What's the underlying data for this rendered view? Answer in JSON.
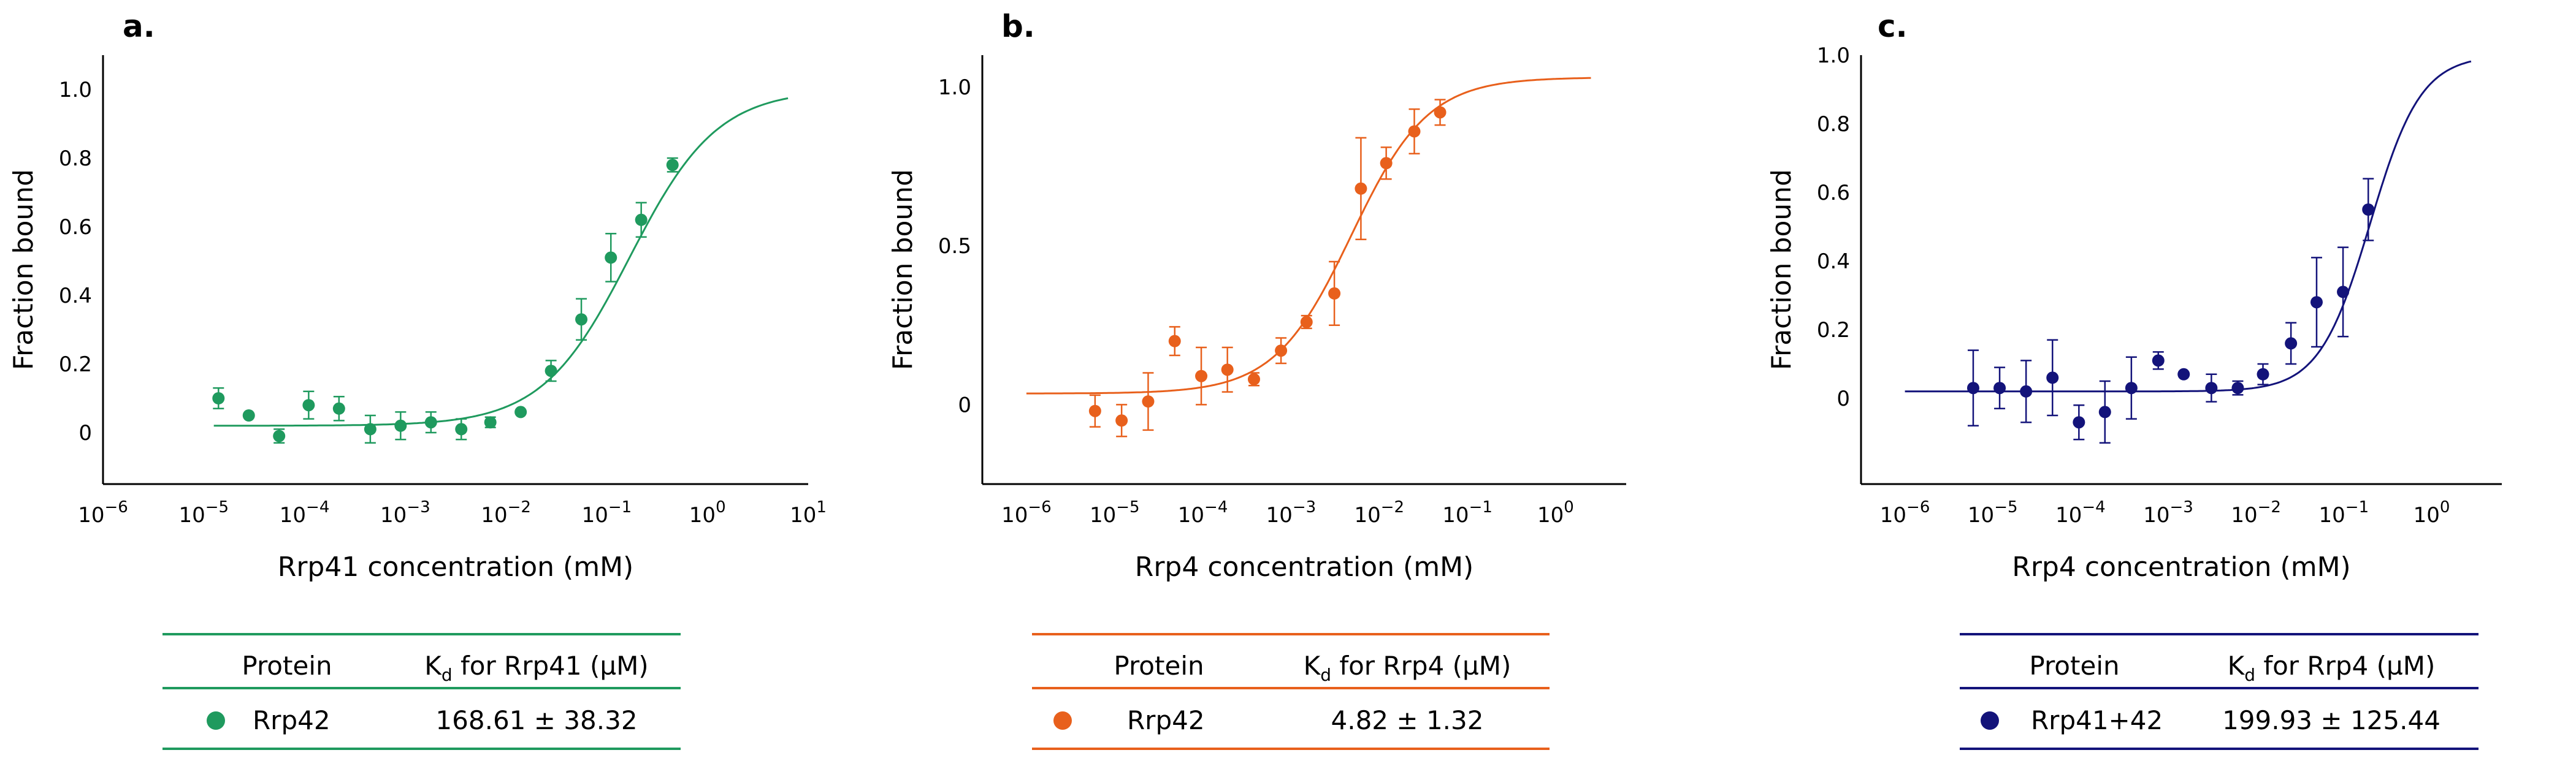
{
  "chart_data": [
    {
      "panel_label": "a.",
      "type": "scatter",
      "color": "#1f9a5e",
      "xscale": "log",
      "xlim_log10": [
        -6,
        1
      ],
      "xticks": [
        {
          "base": "10",
          "exp": "−6"
        },
        {
          "base": "10",
          "exp": "−5"
        },
        {
          "base": "10",
          "exp": "−4"
        },
        {
          "base": "10",
          "exp": "−3"
        },
        {
          "base": "10",
          "exp": "−2"
        },
        {
          "base": "10",
          "exp": "−1"
        },
        {
          "base": "10",
          "exp": "0"
        },
        {
          "base": "10",
          "exp": "1"
        }
      ],
      "ylim": [
        -0.15,
        1.1
      ],
      "yticks": [
        "0",
        "0.2",
        "0.4",
        "0.6",
        "0.8",
        "1.0"
      ],
      "xlabel": "Rrp41 concentration (mM)",
      "ylabel": "Fraction bound",
      "fit": {
        "bottom": 0.02,
        "top": 1.0,
        "kd_mM": 0.16861,
        "hill": 1
      },
      "fit_range_log10": [
        -4.9,
        0.8
      ],
      "points": [
        {
          "x": 1.4e-05,
          "y": 0.1,
          "err": 0.03
        },
        {
          "x": 2.8e-05,
          "y": 0.05,
          "err": 0.0
        },
        {
          "x": 5.6e-05,
          "y": -0.01,
          "err": 0.02
        },
        {
          "x": 0.00011,
          "y": 0.08,
          "err": 0.04
        },
        {
          "x": 0.00022,
          "y": 0.07,
          "err": 0.035
        },
        {
          "x": 0.00045,
          "y": 0.01,
          "err": 0.04
        },
        {
          "x": 0.0009,
          "y": 0.02,
          "err": 0.04
        },
        {
          "x": 0.0018,
          "y": 0.03,
          "err": 0.03
        },
        {
          "x": 0.0036,
          "y": 0.01,
          "err": 0.03
        },
        {
          "x": 0.007,
          "y": 0.03,
          "err": 0.015
        },
        {
          "x": 0.014,
          "y": 0.06,
          "err": 0.0
        },
        {
          "x": 0.028,
          "y": 0.18,
          "err": 0.03
        },
        {
          "x": 0.056,
          "y": 0.33,
          "err": 0.06
        },
        {
          "x": 0.11,
          "y": 0.51,
          "err": 0.07
        },
        {
          "x": 0.22,
          "y": 0.62,
          "err": 0.05
        },
        {
          "x": 0.45,
          "y": 0.78,
          "err": 0.02
        }
      ],
      "table": {
        "header": [
          "Protein",
          "K",
          "d",
          " for Rrp41 (µM)"
        ],
        "row": {
          "protein": "Rrp42",
          "value": "168.61",
          "pm": "±",
          "error": "38.32"
        }
      }
    },
    {
      "panel_label": "b.",
      "type": "scatter",
      "color": "#e8601c",
      "xscale": "log",
      "xlim_log10": [
        -6.5,
        0.8
      ],
      "xticks": [
        {
          "base": "10",
          "exp": "−6"
        },
        {
          "base": "10",
          "exp": "−5"
        },
        {
          "base": "10",
          "exp": "−4"
        },
        {
          "base": "10",
          "exp": "−3"
        },
        {
          "base": "10",
          "exp": "−2"
        },
        {
          "base": "10",
          "exp": "−1"
        },
        {
          "base": "10",
          "exp": "0"
        }
      ],
      "ylim": [
        -0.25,
        1.1
      ],
      "yticks": [
        "0",
        "0.5",
        "1.0"
      ],
      "xlabel": "Rrp4 concentration (mM)",
      "ylabel": "Fraction bound",
      "fit": {
        "bottom": 0.035,
        "top": 1.03,
        "kd_mM": 0.00482,
        "hill": 1
      },
      "fit_range_log10": [
        -6.0,
        0.4
      ],
      "points": [
        {
          "x": 6e-06,
          "y": -0.02,
          "err": 0.05
        },
        {
          "x": 1.2e-05,
          "y": -0.05,
          "err": 0.05
        },
        {
          "x": 2.4e-05,
          "y": 0.01,
          "err": 0.09
        },
        {
          "x": 4.8e-05,
          "y": 0.2,
          "err": 0.045
        },
        {
          "x": 9.6e-05,
          "y": 0.09,
          "err": 0.09
        },
        {
          "x": 0.00019,
          "y": 0.11,
          "err": 0.07
        },
        {
          "x": 0.00038,
          "y": 0.08,
          "err": 0.02
        },
        {
          "x": 0.00077,
          "y": 0.17,
          "err": 0.04
        },
        {
          "x": 0.0015,
          "y": 0.26,
          "err": 0.02
        },
        {
          "x": 0.0031,
          "y": 0.35,
          "err": 0.1
        },
        {
          "x": 0.0062,
          "y": 0.68,
          "err": 0.16
        },
        {
          "x": 0.012,
          "y": 0.76,
          "err": 0.05
        },
        {
          "x": 0.025,
          "y": 0.86,
          "err": 0.07
        },
        {
          "x": 0.049,
          "y": 0.92,
          "err": 0.04
        }
      ],
      "table": {
        "header": [
          "Protein",
          "K",
          "d",
          " for Rrp4 (µM)"
        ],
        "row": {
          "protein": "Rrp42",
          "value": "4.82",
          "pm": "±",
          "error": "1.32"
        }
      }
    },
    {
      "panel_label": "c.",
      "type": "scatter",
      "color": "#13137a",
      "xscale": "log",
      "xlim_log10": [
        -6.5,
        0.8
      ],
      "xticks": [
        {
          "base": "10",
          "exp": "−6"
        },
        {
          "base": "10",
          "exp": "−5"
        },
        {
          "base": "10",
          "exp": "−4"
        },
        {
          "base": "10",
          "exp": "−3"
        },
        {
          "base": "10",
          "exp": "−2"
        },
        {
          "base": "10",
          "exp": "−1"
        },
        {
          "base": "10",
          "exp": "0"
        }
      ],
      "ylim": [
        -0.25,
        1.0
      ],
      "yticks": [
        "0",
        "0.2",
        "0.4",
        "0.6",
        "0.8",
        "1.0"
      ],
      "xlabel": "Rrp4 concentration (mM)",
      "ylabel": "Fraction bound",
      "fit": {
        "bottom": 0.02,
        "top": 1.0,
        "kd_mM": 0.19993,
        "hill": 1.5
      },
      "fit_range_log10": [
        -6.0,
        0.45
      ],
      "points": [
        {
          "x": 6e-06,
          "y": 0.03,
          "err": 0.11
        },
        {
          "x": 1.2e-05,
          "y": 0.03,
          "err": 0.06
        },
        {
          "x": 2.4e-05,
          "y": 0.02,
          "err": 0.09
        },
        {
          "x": 4.8e-05,
          "y": 0.06,
          "err": 0.11
        },
        {
          "x": 9.6e-05,
          "y": -0.07,
          "err": 0.05
        },
        {
          "x": 0.00019,
          "y": -0.04,
          "err": 0.09
        },
        {
          "x": 0.00038,
          "y": 0.03,
          "err": 0.09
        },
        {
          "x": 0.00077,
          "y": 0.11,
          "err": 0.025
        },
        {
          "x": 0.0015,
          "y": 0.07,
          "err": 0.0
        },
        {
          "x": 0.0031,
          "y": 0.03,
          "err": 0.04
        },
        {
          "x": 0.0062,
          "y": 0.03,
          "err": 0.02
        },
        {
          "x": 0.012,
          "y": 0.07,
          "err": 0.03
        },
        {
          "x": 0.025,
          "y": 0.16,
          "err": 0.06
        },
        {
          "x": 0.049,
          "y": 0.28,
          "err": 0.13
        },
        {
          "x": 0.098,
          "y": 0.31,
          "err": 0.13
        },
        {
          "x": 0.19,
          "y": 0.55,
          "err": 0.09
        }
      ],
      "table": {
        "header": [
          "Protein",
          "K",
          "d",
          " for Rrp4 (µM)"
        ],
        "row": {
          "protein": "Rrp41+42",
          "value": "199.93",
          "pm": "±",
          "error": "125.44"
        }
      }
    }
  ]
}
